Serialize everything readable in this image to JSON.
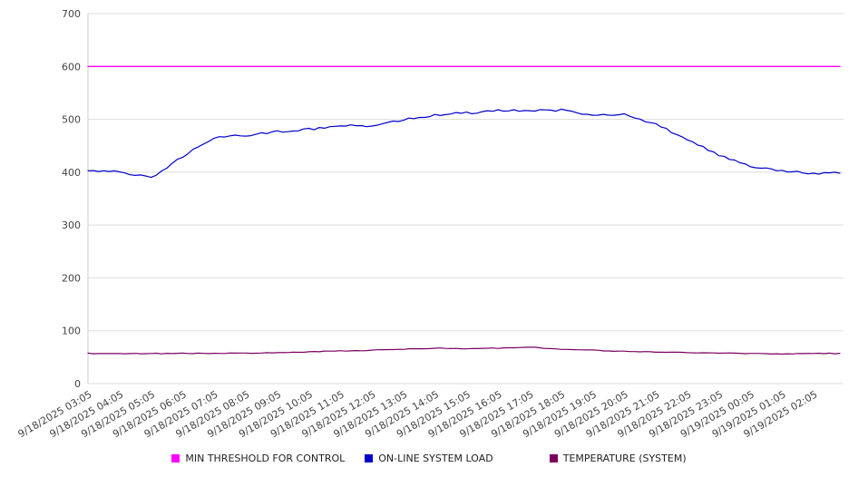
{
  "chart_data": {
    "type": "line",
    "title": "",
    "xlabel": "",
    "ylabel": "",
    "ylim": [
      0,
      700
    ],
    "ytick_step": 100,
    "grid": "horizontal",
    "legend_position": "bottom",
    "categories": [
      "9/18/2025 03:05",
      "9/18/2025 04:05",
      "9/18/2025 05:05",
      "9/18/2025 06:05",
      "9/18/2025 07:05",
      "9/18/2025 08:05",
      "9/18/2025 09:05",
      "9/18/2025 10:05",
      "9/18/2025 11:05",
      "9/18/2025 12:05",
      "9/18/2025 13:05",
      "9/18/2025 14:05",
      "9/18/2025 15:05",
      "9/18/2025 16:05",
      "9/18/2025 17:05",
      "9/18/2025 18:05",
      "9/18/2025 19:05",
      "9/18/2025 20:05",
      "9/18/2025 21:05",
      "9/18/2025 22:05",
      "9/18/2025 23:05",
      "9/19/2025 00:05",
      "9/19/2025 01:05",
      "9/19/2025 02:05"
    ],
    "series": [
      {
        "name": "MIN THRESHOLD FOR CONTROL",
        "color": "#ff00ff",
        "values": [
          600,
          600,
          600,
          600,
          600,
          600,
          600,
          600,
          600,
          600,
          600,
          600,
          600,
          600,
          600,
          600,
          600,
          600,
          600,
          600,
          600,
          600,
          600,
          600
        ]
      },
      {
        "name": "ON-LINE SYSTEM LOAD",
        "color": "#0000cc",
        "values": [
          403,
          401,
          389,
          430,
          466,
          469,
          477,
          481,
          489,
          488,
          500,
          508,
          512,
          516,
          517,
          517,
          508,
          510,
          491,
          462,
          433,
          412,
          403,
          398
        ]
      },
      {
        "name": "TEMPERATURE (SYSTEM)",
        "color": "#7a005f",
        "values": [
          57,
          57,
          57,
          57,
          57,
          58,
          58,
          60,
          62,
          63,
          65,
          67,
          66,
          67,
          69,
          65,
          63,
          61,
          60,
          59,
          58,
          57,
          56,
          57
        ]
      }
    ]
  }
}
